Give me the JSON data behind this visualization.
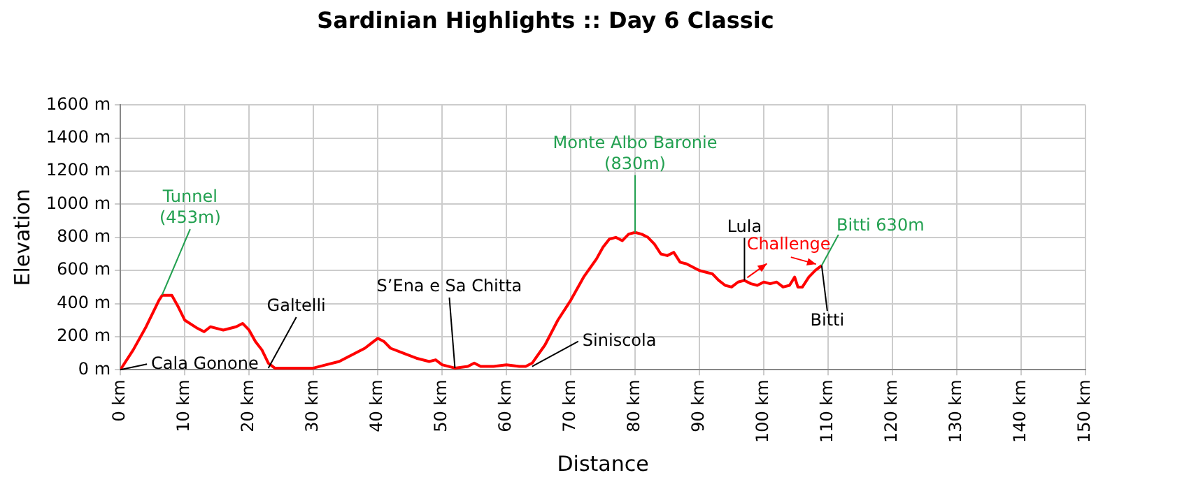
{
  "chart_data": {
    "type": "line",
    "title": "Sardinian Highlights :: Day 6 Classic",
    "xlabel": "Distance",
    "ylabel": "Elevation",
    "x": [
      0,
      2,
      4,
      6,
      6.5,
      8,
      9,
      10,
      12,
      13,
      14,
      15,
      16,
      18,
      19,
      20,
      21,
      22,
      23,
      24,
      26,
      28,
      30,
      32,
      34,
      36,
      38,
      39,
      40,
      41,
      42,
      44,
      46,
      48,
      49,
      50,
      52,
      54,
      55,
      56,
      58,
      60,
      62,
      63,
      64,
      66,
      68,
      70,
      72,
      74,
      75,
      76,
      77,
      78,
      79,
      80,
      81,
      82,
      83,
      84,
      85,
      86,
      87,
      88,
      90,
      92,
      93,
      94,
      95,
      96,
      97,
      98,
      99,
      100,
      101,
      102,
      103,
      104,
      104.8,
      105.3,
      106,
      107,
      108,
      109
    ],
    "series": [
      {
        "color": "#ff0000",
        "values": [
          0,
          120,
          260,
          420,
          450,
          450,
          380,
          300,
          250,
          230,
          260,
          250,
          240,
          260,
          280,
          240,
          170,
          120,
          40,
          10,
          10,
          10,
          10,
          30,
          50,
          90,
          130,
          160,
          190,
          170,
          130,
          100,
          70,
          50,
          60,
          30,
          10,
          20,
          40,
          20,
          20,
          30,
          20,
          20,
          40,
          150,
          300,
          420,
          560,
          670,
          740,
          790,
          800,
          780,
          820,
          830,
          820,
          800,
          760,
          700,
          690,
          710,
          650,
          640,
          600,
          580,
          540,
          510,
          500,
          530,
          540,
          520,
          510,
          530,
          520,
          530,
          500,
          510,
          560,
          500,
          500,
          560,
          600,
          630
        ]
      }
    ],
    "xlim": [
      0,
      150
    ],
    "xticks": [
      {
        "value": 0,
        "label": "0 km"
      },
      {
        "value": 10,
        "label": "10 km"
      },
      {
        "value": 20,
        "label": "20 km"
      },
      {
        "value": 30,
        "label": "30 km"
      },
      {
        "value": 40,
        "label": "40 km"
      },
      {
        "value": 50,
        "label": "50 km"
      },
      {
        "value": 60,
        "label": "60 km"
      },
      {
        "value": 70,
        "label": "70 km"
      },
      {
        "value": 80,
        "label": "80 km"
      },
      {
        "value": 90,
        "label": "90 km"
      },
      {
        "value": 100,
        "label": "100 km"
      },
      {
        "value": 110,
        "label": "110 km"
      },
      {
        "value": 120,
        "label": "120 km"
      },
      {
        "value": 130,
        "label": "130 km"
      },
      {
        "value": 140,
        "label": "140 km"
      },
      {
        "value": 150,
        "label": "150 km"
      }
    ],
    "ylim": [
      0,
      1600
    ],
    "yticks": [
      {
        "value": 0,
        "label": "0 m"
      },
      {
        "value": 200,
        "label": "200 m"
      },
      {
        "value": 400,
        "label": "400 m"
      },
      {
        "value": 600,
        "label": "600 m"
      },
      {
        "value": 800,
        "label": "800 m"
      },
      {
        "value": 1000,
        "label": "1000 m"
      },
      {
        "value": 1200,
        "label": "1200 m"
      },
      {
        "value": 1400,
        "label": "1400 m"
      },
      {
        "value": 1600,
        "label": "1600 m"
      }
    ],
    "grid": true,
    "legend": false,
    "marker": "none",
    "line_style": "solid",
    "annotations": [
      {
        "text": "Tunnel\n(453m)",
        "x": 6.5,
        "y": 453
      },
      {
        "text": "Cala Gonone",
        "x": 0,
        "y": 0
      },
      {
        "text": "Galtelli",
        "x": 23,
        "y": 10
      },
      {
        "text": "S’Ena e Sa Chitta",
        "x": 52,
        "y": 10
      },
      {
        "text": "Siniscola",
        "x": 64,
        "y": 20
      },
      {
        "text": "Monte Albo Baronie\n(830m)",
        "x": 80,
        "y": 830
      },
      {
        "text": "Lula",
        "x": 97,
        "y": 540
      },
      "Challenge",
      {
        "text": "Bitti 630m",
        "x": 109,
        "y": 630
      },
      {
        "text": "Bitti",
        "x": 109,
        "y": 630
      }
    ]
  }
}
